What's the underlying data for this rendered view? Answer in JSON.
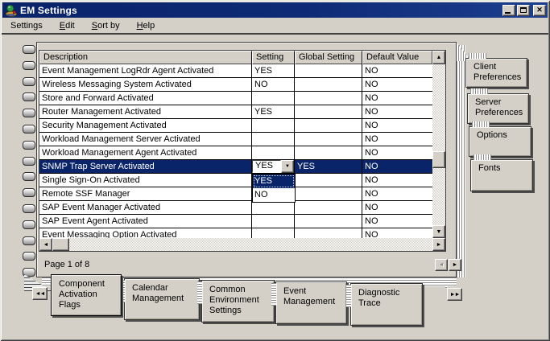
{
  "window": {
    "title": "EM Settings"
  },
  "colors": {
    "titlebar": "#0a246a",
    "window_face": "#d4d0c8",
    "selection_bg": "#0a246a",
    "selection_text": "#ffffff",
    "grid_background": "#ffffff",
    "grid_line": "#000000"
  },
  "icons": {
    "app": "joystick",
    "minimize": "_",
    "maximize": "□",
    "close": "✕",
    "scroll_up": "▲",
    "scroll_down": "▼",
    "scroll_left": "◄",
    "scroll_right": "►",
    "combo_arrow": "▼",
    "page_prev": "◄",
    "page_next": "►",
    "tabs_prev": "◄◄",
    "tabs_next": "►►"
  },
  "menu": {
    "items": [
      {
        "pre": "Settin",
        "accel": "g",
        "post": "s"
      },
      {
        "pre": "",
        "accel": "E",
        "post": "dit"
      },
      {
        "pre": "",
        "accel": "S",
        "post": "ort by"
      },
      {
        "pre": "",
        "accel": "H",
        "post": "elp"
      }
    ]
  },
  "grid": {
    "columns": [
      "Description",
      "Setting",
      "Global Setting",
      "Default Value"
    ],
    "rows": [
      {
        "description": "Event Management LogRdr Agent Activated",
        "setting": "YES",
        "global_setting": "",
        "default_value": "NO"
      },
      {
        "description": "Wireless Messaging System Activated",
        "setting": "NO",
        "global_setting": "",
        "default_value": "NO"
      },
      {
        "description": "Store and Forward Activated",
        "setting": "",
        "global_setting": "",
        "default_value": "NO"
      },
      {
        "description": "Router Management Activated",
        "setting": "YES",
        "global_setting": "",
        "default_value": "NO"
      },
      {
        "description": "Security Management Activated",
        "setting": "",
        "global_setting": "",
        "default_value": "NO"
      },
      {
        "description": "Workload Management Server Activated",
        "setting": "",
        "global_setting": "",
        "default_value": "NO"
      },
      {
        "description": "Workload Management Agent Activated",
        "setting": "",
        "global_setting": "",
        "default_value": "NO"
      },
      {
        "description": "SNMP Trap Server Activated",
        "setting": "YES",
        "global_setting": "YES",
        "default_value": "NO",
        "selected": true,
        "editor": "combo"
      },
      {
        "description": "Single Sign-On Activated",
        "setting": "",
        "global_setting": "",
        "default_value": "NO"
      },
      {
        "description": "Remote SSF Manager",
        "setting": "",
        "global_setting": "",
        "default_value": "NO"
      },
      {
        "description": "SAP Event Manager Activated",
        "setting": "",
        "global_setting": "",
        "default_value": "NO"
      },
      {
        "description": "SAP Event Agent Activated",
        "setting": "",
        "global_setting": "",
        "default_value": "NO"
      },
      {
        "description": "Event Messaging Option Activated",
        "setting": "",
        "global_setting": "",
        "default_value": "NO",
        "clipped": true
      }
    ]
  },
  "combo": {
    "value": "YES",
    "options": [
      {
        "label": "YES",
        "highlighted": true
      },
      {
        "label": "NO",
        "highlighted": false
      }
    ]
  },
  "pager": {
    "label": "Page 1 of 8"
  },
  "side_tabs": [
    {
      "label": "Client Preferences"
    },
    {
      "label": "Server Preferences"
    },
    {
      "label": "Options"
    },
    {
      "label": "Fonts"
    }
  ],
  "bottom_tabs": [
    {
      "label": "Component Activation Flags",
      "active": true
    },
    {
      "label": "Calendar Management",
      "active": false
    },
    {
      "label": "Common Environment Settings",
      "active": false
    },
    {
      "label": "Event Management",
      "active": false
    },
    {
      "label": "Diagnostic Trace",
      "active": false
    }
  ]
}
